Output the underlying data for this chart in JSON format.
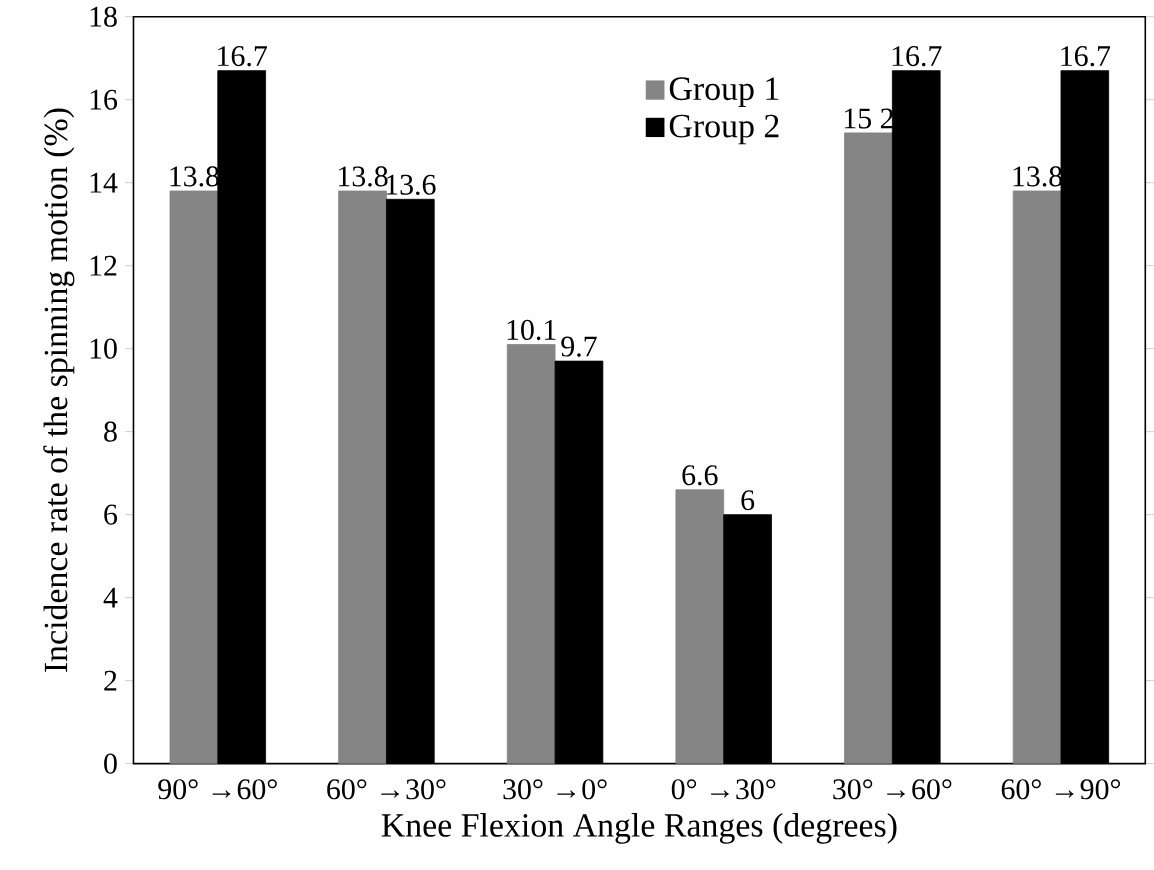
{
  "chart_data": {
    "type": "bar",
    "xlabel": "Knee Flexion Angle Ranges (degrees)",
    "ylabel": "Incidence rate of the spinning motion (%)",
    "categories": [
      "90° →60°",
      "60° →30°",
      "30° →0°",
      "0° →30°",
      "30° →60°",
      "60° →90°"
    ],
    "series": [
      {
        "name": "Group 1",
        "color": "#858585",
        "values": [
          13.8,
          13.8,
          10.1,
          6.6,
          15.2,
          13.8
        ],
        "value_labels": [
          "13.8",
          "13.8",
          "10.1",
          "6.6",
          "15 2",
          "13.8"
        ]
      },
      {
        "name": "Group 2",
        "color": "#000000",
        "values": [
          16.7,
          13.6,
          9.7,
          6,
          16.7,
          16.7
        ],
        "value_labels": [
          "16.7",
          "13.6",
          "9.7",
          "6",
          "16.7",
          "16.7"
        ]
      }
    ],
    "ylim": [
      0,
      18
    ],
    "yticks": [
      0,
      2,
      4,
      6,
      8,
      10,
      12,
      14,
      16,
      18
    ],
    "legend": "top",
    "grid": false
  }
}
